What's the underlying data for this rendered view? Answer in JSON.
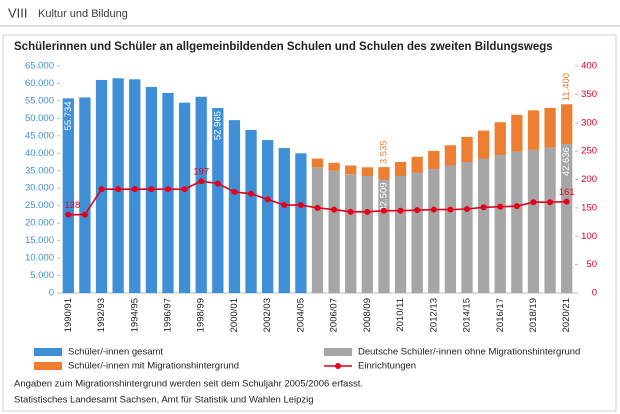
{
  "header": {
    "section": "VIII",
    "title": "Kultur und Bildung"
  },
  "chart_data": {
    "type": "bar",
    "stacked": true,
    "title": "Schülerinnen und Schüler an allgemeinbildenden Schulen und Schulen des zweiten Bildungswegs",
    "categories": [
      "1990/91",
      null,
      "1992/93",
      null,
      "1994/95",
      null,
      "1996/97",
      null,
      "1998/99",
      null,
      "2000/01",
      null,
      "2002/03",
      null,
      "2004/05",
      null,
      "2006/07",
      null,
      "2008/09",
      null,
      "2010/11",
      null,
      "2012/13",
      null,
      "2014/15",
      null,
      "2016/17",
      null,
      "2018/19",
      null,
      "2020/21"
    ],
    "ylim": [
      0,
      65000
    ],
    "yticks": [
      {
        "value": 0,
        "label": "0"
      },
      {
        "value": 5000,
        "label": "5.000"
      },
      {
        "value": 10000,
        "label": "10.000"
      },
      {
        "value": 15000,
        "label": "15.000"
      },
      {
        "value": 20000,
        "label": "20.000"
      },
      {
        "value": 25000,
        "label": "25.000"
      },
      {
        "value": 30000,
        "label": "30.000"
      },
      {
        "value": 35000,
        "label": "35.000"
      },
      {
        "value": 40000,
        "label": "40.000"
      },
      {
        "value": 45000,
        "label": "45.000"
      },
      {
        "value": 50000,
        "label": "50.000"
      },
      {
        "value": 55000,
        "label": "55.000"
      },
      {
        "value": 60000,
        "label": "60.000"
      },
      {
        "value": 65000,
        "label": "65.000"
      }
    ],
    "y2lim": [
      0,
      400
    ],
    "y2ticks": [
      0,
      50,
      100,
      150,
      200,
      250,
      300,
      350,
      400
    ],
    "grid": false,
    "series": [
      {
        "name": "Schüler/-innen gesamt",
        "color": "#3f8fd6",
        "values": [
          55734,
          56000,
          61000,
          61500,
          61200,
          59000,
          57300,
          54500,
          56200,
          52965,
          49500,
          46700,
          43800,
          41500,
          40000,
          null,
          null,
          null,
          null,
          null,
          null,
          null,
          null,
          null,
          null,
          null,
          null,
          null,
          null,
          null,
          null
        ],
        "value_labels": [
          "55.734",
          null,
          null,
          null,
          null,
          null,
          null,
          null,
          null,
          "52.965",
          null,
          null,
          null,
          null,
          null,
          null,
          null,
          null,
          null,
          null,
          null,
          null,
          null,
          null,
          null,
          null,
          null,
          null,
          null,
          null,
          null
        ]
      },
      {
        "name": "Deutsche Schüler/-innen ohne Migrationshintergrund",
        "color": "#a6a6a6",
        "values": [
          null,
          null,
          null,
          null,
          null,
          null,
          null,
          null,
          null,
          null,
          null,
          null,
          null,
          null,
          null,
          36000,
          35000,
          34000,
          33500,
          32509,
          33500,
          34500,
          35500,
          36500,
          37500,
          38500,
          39500,
          40500,
          41000,
          41700,
          42636
        ],
        "value_labels": [
          null,
          null,
          null,
          null,
          null,
          null,
          null,
          null,
          null,
          null,
          null,
          null,
          null,
          null,
          null,
          null,
          null,
          null,
          null,
          "32.509",
          null,
          null,
          null,
          null,
          null,
          null,
          null,
          null,
          null,
          null,
          "42.636"
        ]
      },
      {
        "name": "Schüler/-innen mit Migrationshintergrund",
        "color": "#ed7d31",
        "values": [
          null,
          null,
          null,
          null,
          null,
          null,
          null,
          null,
          null,
          null,
          null,
          null,
          null,
          null,
          null,
          2500,
          2300,
          2500,
          2500,
          3535,
          4000,
          4500,
          5200,
          5800,
          7200,
          8000,
          9400,
          10500,
          11300,
          11300,
          11400
        ],
        "value_labels": [
          null,
          null,
          null,
          null,
          null,
          null,
          null,
          null,
          null,
          null,
          null,
          null,
          null,
          null,
          null,
          null,
          null,
          null,
          null,
          "3.535",
          null,
          null,
          null,
          null,
          null,
          null,
          null,
          null,
          null,
          null,
          "11.400"
        ]
      },
      {
        "name": "Einrichtungen",
        "color": "#e3001b",
        "type": "line",
        "axis": "y2",
        "values": [
          138,
          138,
          183,
          183,
          183,
          183,
          183,
          183,
          197,
          193,
          178,
          175,
          165,
          155,
          155,
          150,
          147,
          143,
          143,
          145,
          145,
          146,
          147,
          147,
          148,
          151,
          152,
          153,
          160,
          160,
          161
        ],
        "value_labels": [
          "138",
          null,
          null,
          null,
          null,
          null,
          null,
          null,
          "197",
          null,
          null,
          null,
          null,
          null,
          null,
          null,
          null,
          null,
          null,
          null,
          null,
          null,
          null,
          null,
          null,
          null,
          null,
          null,
          null,
          null,
          "161"
        ]
      }
    ]
  },
  "footnotes": [
    "Angaben zum Migrationshintergrund werden seit dem Schuljahr 2005/2006 erfasst.",
    "Statistisches Landesamt Sachsen, Amt für Statistik und Wahlen Leipzig"
  ]
}
